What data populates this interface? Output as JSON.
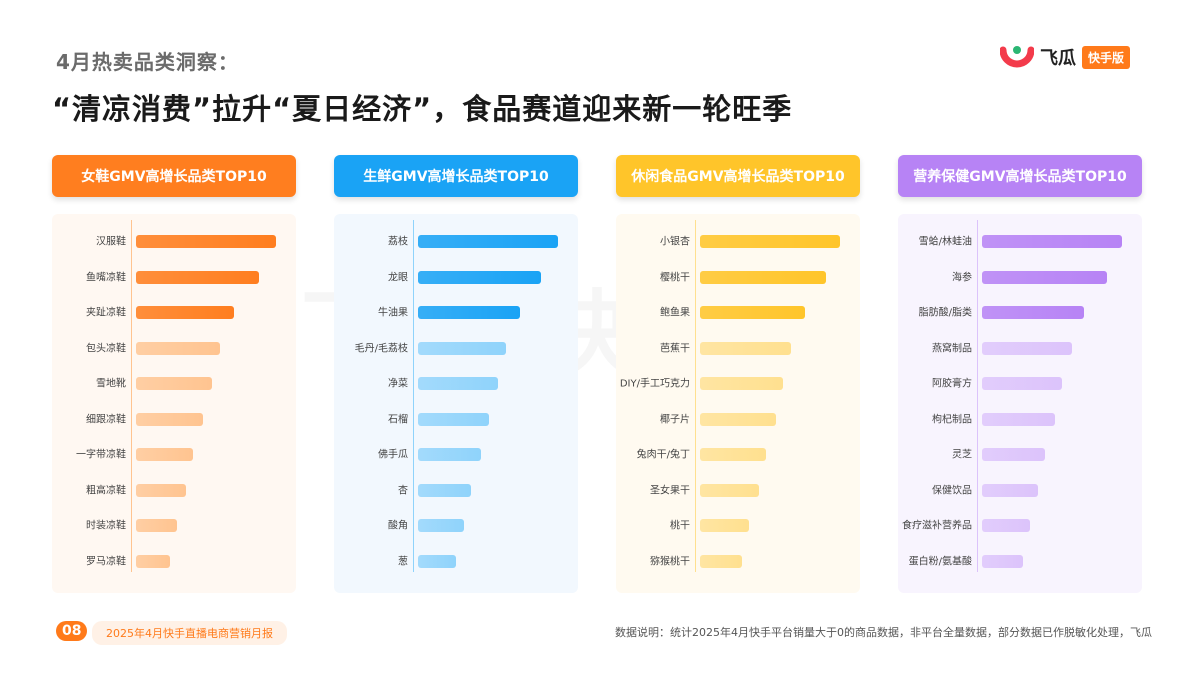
{
  "header": {
    "subtitle": "4月热卖品类洞察：",
    "title": "“清凉消费”拉升“夏日经济”，食品赛道迎来新一轮旺季"
  },
  "logo": {
    "name": "飞瓜",
    "badge": "快手版"
  },
  "watermark": "飞瓜 快手版",
  "footer": {
    "page": "08",
    "report": "2025年4月快手直播电商营销月报",
    "note": "数据说明：统计2025年4月快手平台销量大于0的商品数据，非平台全量数据，部分数据已作脱敏化处理，飞瓜"
  },
  "chart_data": [
    {
      "type": "bar",
      "orientation": "horizontal",
      "title": "女鞋GMV高增长品类TOP10",
      "color": "#ff7e1f",
      "light_color": "#ffc490",
      "bg": "#fff8f2",
      "categories": [
        "汉服鞋",
        "鱼嘴凉鞋",
        "夹趾凉鞋",
        "包头凉鞋",
        "雪地靴",
        "细跟凉鞋",
        "一字带凉鞋",
        "粗高凉鞋",
        "时装凉鞋",
        "罗马凉鞋"
      ],
      "values": [
        100,
        88,
        70,
        60,
        54,
        48,
        41,
        36,
        29,
        24
      ]
    },
    {
      "type": "bar",
      "orientation": "horizontal",
      "title": "生鲜GMV高增长品类TOP10",
      "color": "#1aa3f5",
      "light_color": "#8fd3fb",
      "bg": "#f2f8fe",
      "categories": [
        "荔枝",
        "龙眼",
        "牛油果",
        "毛丹/毛荔枝",
        "净菜",
        "石榴",
        "佛手瓜",
        "杏",
        "酸角",
        "葱"
      ],
      "values": [
        100,
        88,
        73,
        63,
        57,
        51,
        45,
        38,
        33,
        27
      ]
    },
    {
      "type": "bar",
      "orientation": "horizontal",
      "title": "休闲食品GMV高增长品类TOP10",
      "color": "#ffc52a",
      "light_color": "#ffe08f",
      "bg": "#fffaf0",
      "categories": [
        "小银杏",
        "樱桃干",
        "鲍鱼果",
        "芭蕉干",
        "DIY/手工巧克力",
        "椰子片",
        "兔肉干/兔丁",
        "圣女果干",
        "桃干",
        "猕猴桃干"
      ],
      "values": [
        100,
        90,
        75,
        65,
        59,
        54,
        47,
        42,
        35,
        30
      ]
    },
    {
      "type": "bar",
      "orientation": "horizontal",
      "title": "营养保健GMV高增长品类TOP10",
      "color": "#b783f5",
      "light_color": "#dcc3fb",
      "bg": "#f8f4fe",
      "categories": [
        "雪蛤/林蛙油",
        "海参",
        "脂肪酸/脂类",
        "燕窝制品",
        "阿胶膏方",
        "枸杞制品",
        "灵芝",
        "保健饮品",
        "食疗滋补营养品",
        "蛋白粉/氨基酸"
      ],
      "values": [
        100,
        89,
        73,
        64,
        57,
        52,
        45,
        40,
        34,
        29
      ]
    }
  ]
}
